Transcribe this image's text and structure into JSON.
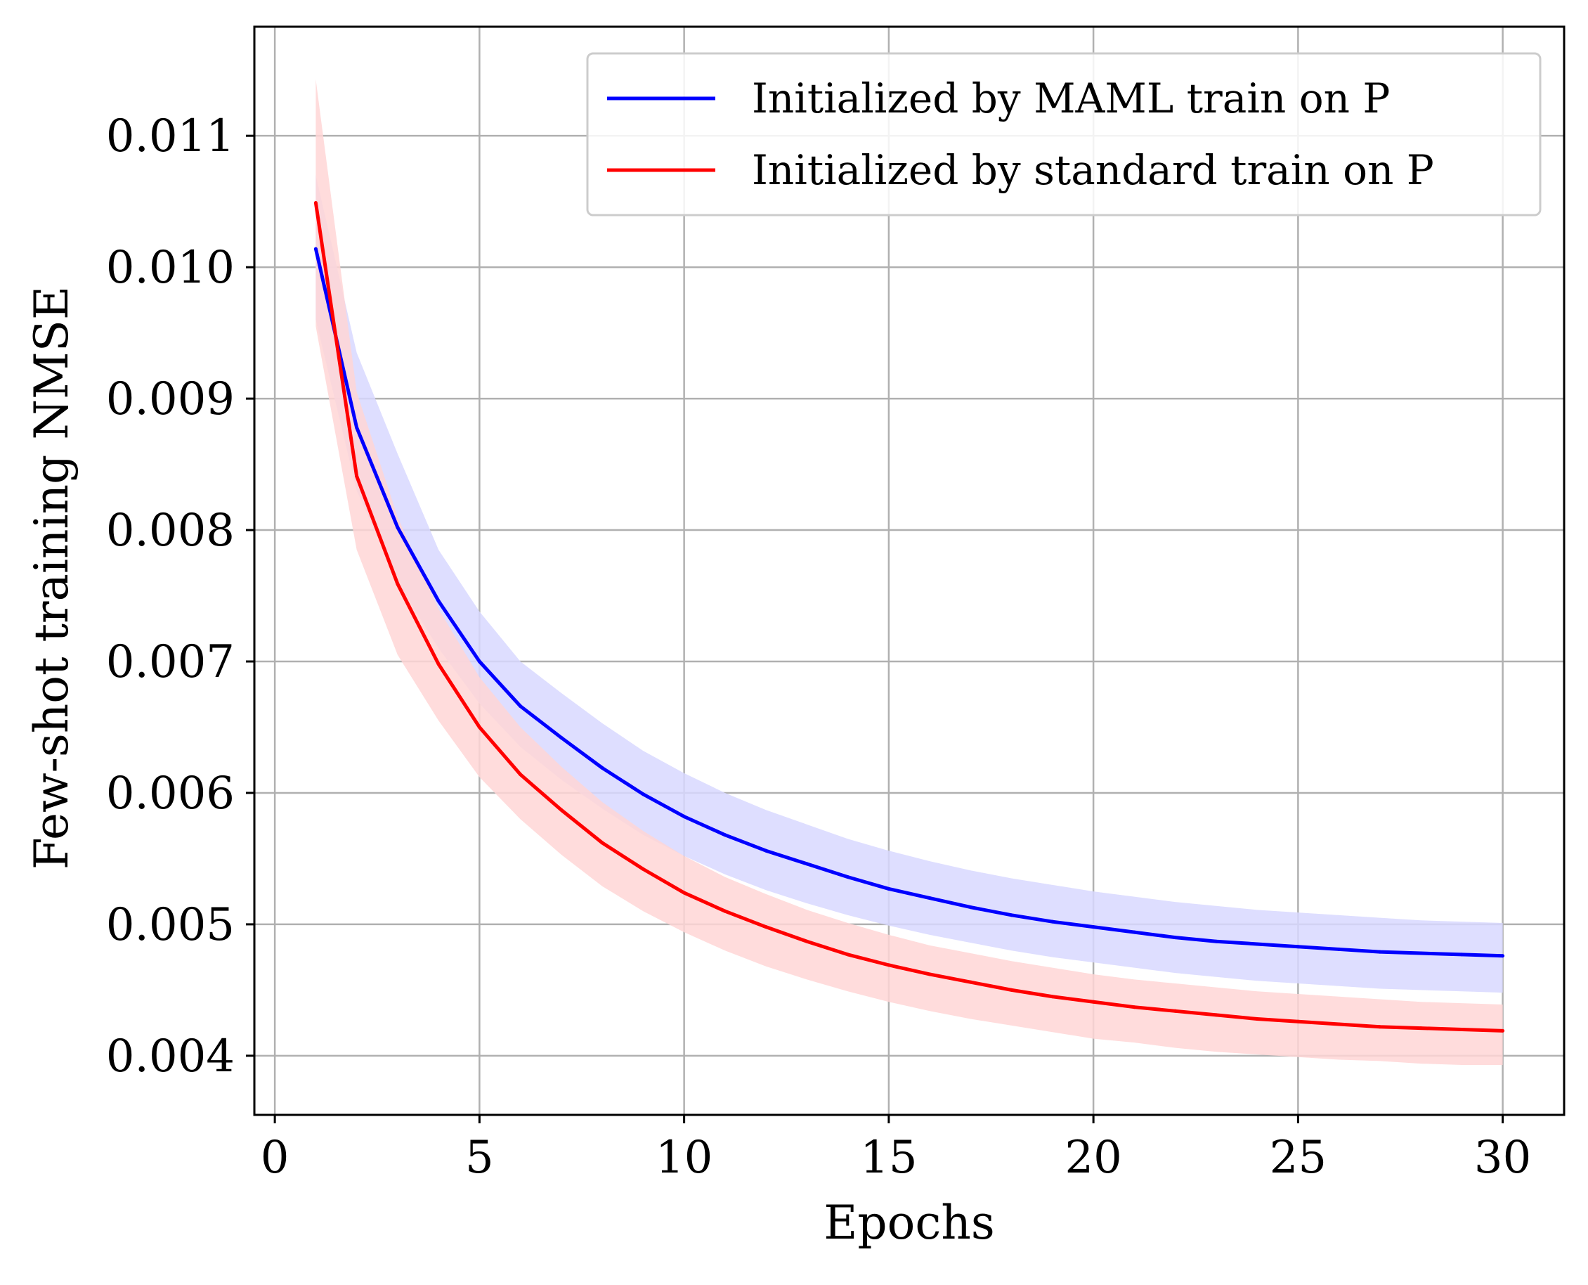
{
  "chart_data": {
    "type": "line",
    "xlabel": "Epochs",
    "ylabel": "Few-shot training NMSE",
    "xlim": [
      -0.5,
      31.5
    ],
    "ylim": [
      0.00355,
      0.01183
    ],
    "xticks": [
      0,
      5,
      10,
      15,
      20,
      25,
      30
    ],
    "xtick_labels": [
      "0",
      "5",
      "10",
      "15",
      "20",
      "25",
      "30"
    ],
    "yticks": [
      0.004,
      0.005,
      0.006,
      0.007,
      0.008,
      0.009,
      0.01,
      0.011
    ],
    "ytick_labels": [
      "0.004",
      "0.005",
      "0.006",
      "0.007",
      "0.008",
      "0.009",
      "0.010",
      "0.011"
    ],
    "grid": true,
    "legend_position": "top-right",
    "x": [
      1,
      2,
      3,
      4,
      5,
      6,
      7,
      8,
      9,
      10,
      11,
      12,
      13,
      14,
      15,
      16,
      17,
      18,
      19,
      20,
      21,
      22,
      23,
      24,
      25,
      26,
      27,
      28,
      29,
      30
    ],
    "series": [
      {
        "name": "Initialized by MAML train on P",
        "color": "#0000ff",
        "band_color": "#d8d8ff",
        "values": [
          0.01014,
          0.00878,
          0.00802,
          0.00746,
          0.007,
          0.00666,
          0.00642,
          0.00619,
          0.00599,
          0.00582,
          0.00568,
          0.00556,
          0.00546,
          0.00536,
          0.00527,
          0.0052,
          0.00513,
          0.00507,
          0.00502,
          0.00498,
          0.00494,
          0.0049,
          0.00487,
          0.00485,
          0.00483,
          0.00481,
          0.00479,
          0.00478,
          0.00477,
          0.00476
        ],
        "upper": [
          0.0107,
          0.00935,
          0.00858,
          0.00785,
          0.00738,
          0.007,
          0.00676,
          0.00653,
          0.00632,
          0.00615,
          0.006,
          0.00587,
          0.00576,
          0.00565,
          0.00556,
          0.00548,
          0.00541,
          0.00535,
          0.0053,
          0.00525,
          0.00521,
          0.00517,
          0.00514,
          0.00511,
          0.00509,
          0.00507,
          0.00505,
          0.00503,
          0.00502,
          0.00501
        ],
        "lower": [
          0.0096,
          0.0083,
          0.0076,
          0.0071,
          0.00668,
          0.00635,
          0.0061,
          0.00588,
          0.00568,
          0.00552,
          0.00538,
          0.00526,
          0.00516,
          0.00507,
          0.00499,
          0.00492,
          0.00486,
          0.0048,
          0.00475,
          0.00471,
          0.00467,
          0.00463,
          0.0046,
          0.00457,
          0.00455,
          0.00453,
          0.00451,
          0.0045,
          0.00449,
          0.00448
        ]
      },
      {
        "name": "Initialized by standard train on P",
        "color": "#ff0000",
        "band_color": "#ffd6d6",
        "values": [
          0.01049,
          0.00841,
          0.00759,
          0.00698,
          0.0065,
          0.00614,
          0.00587,
          0.00562,
          0.00542,
          0.00524,
          0.0051,
          0.00498,
          0.00487,
          0.00477,
          0.00469,
          0.00462,
          0.00456,
          0.0045,
          0.00445,
          0.00441,
          0.00437,
          0.00434,
          0.00431,
          0.00428,
          0.00426,
          0.00424,
          0.00422,
          0.00421,
          0.0042,
          0.00419
        ],
        "upper": [
          0.01143,
          0.00905,
          0.0081,
          0.0074,
          0.00688,
          0.0065,
          0.0062,
          0.00593,
          0.00571,
          0.00552,
          0.00536,
          0.00523,
          0.00511,
          0.00501,
          0.00492,
          0.00484,
          0.00478,
          0.00472,
          0.00467,
          0.00462,
          0.00458,
          0.00455,
          0.00452,
          0.00449,
          0.00447,
          0.00445,
          0.00443,
          0.00441,
          0.0044,
          0.00439
        ],
        "lower": [
          0.00955,
          0.00785,
          0.00705,
          0.00655,
          0.00612,
          0.0058,
          0.00553,
          0.00529,
          0.0051,
          0.00494,
          0.0048,
          0.00468,
          0.00458,
          0.00449,
          0.00441,
          0.00434,
          0.00428,
          0.00423,
          0.00418,
          0.00413,
          0.0041,
          0.00406,
          0.00403,
          0.00401,
          0.00399,
          0.00397,
          0.00396,
          0.00394,
          0.00393,
          0.00393
        ]
      }
    ]
  }
}
